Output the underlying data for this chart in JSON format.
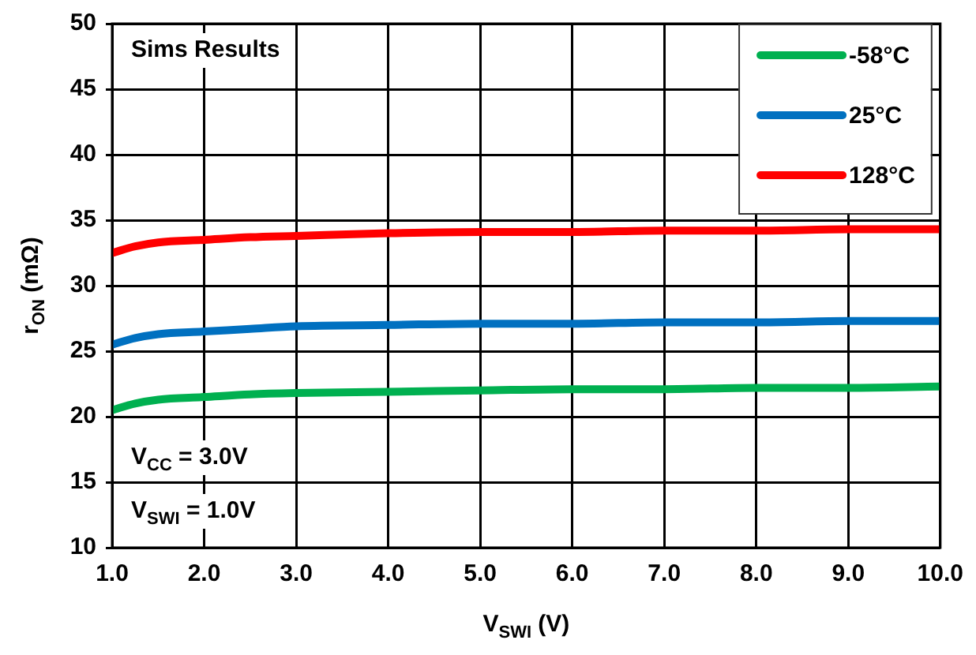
{
  "chart_data": {
    "type": "line",
    "xlabel": "V$_{SWI}$ (V)",
    "ylabel": "r$_{ON}$ (mΩ)",
    "x": [
      1,
      1.25,
      1.5,
      2,
      2.5,
      3,
      4,
      5,
      6,
      7,
      8,
      9,
      10
    ],
    "series": [
      {
        "name": "-58°C",
        "color": "#00b050",
        "values": [
          20.5,
          21.0,
          21.3,
          21.5,
          21.7,
          21.8,
          21.9,
          22.0,
          22.1,
          22.1,
          22.2,
          22.2,
          22.3
        ]
      },
      {
        "name": "25°C",
        "color": "#0070c0",
        "values": [
          25.5,
          26.0,
          26.3,
          26.5,
          26.7,
          26.9,
          27.0,
          27.1,
          27.1,
          27.2,
          27.2,
          27.3,
          27.3
        ]
      },
      {
        "name": "128°C",
        "color": "#ff0000",
        "values": [
          32.5,
          33.0,
          33.3,
          33.5,
          33.7,
          33.8,
          34.0,
          34.1,
          34.1,
          34.2,
          34.2,
          34.3,
          34.3
        ]
      }
    ],
    "xlim": [
      1,
      10
    ],
    "xticks": [
      {
        "value": 1,
        "label": "1.0"
      },
      {
        "value": 2,
        "label": "2.0"
      },
      {
        "value": 3,
        "label": "3.0"
      },
      {
        "value": 4,
        "label": "4.0"
      },
      {
        "value": 5,
        "label": "5.0"
      },
      {
        "value": 6,
        "label": "6.0"
      },
      {
        "value": 7,
        "label": "7.0"
      },
      {
        "value": 8,
        "label": "8.0"
      },
      {
        "value": 9,
        "label": "9.0"
      },
      {
        "value": 10,
        "label": "10.0"
      }
    ],
    "ylim": [
      10,
      50
    ],
    "yticks": [
      10,
      15,
      20,
      25,
      30,
      35,
      40,
      45,
      50
    ],
    "grid": true,
    "legend": "top right",
    "marker": "none",
    "line_style": "solid",
    "annotations": [
      "Sims Results",
      "V$_{CC}$ = 3.0V",
      "V$_{SWI}$ = 1.0V"
    ]
  }
}
